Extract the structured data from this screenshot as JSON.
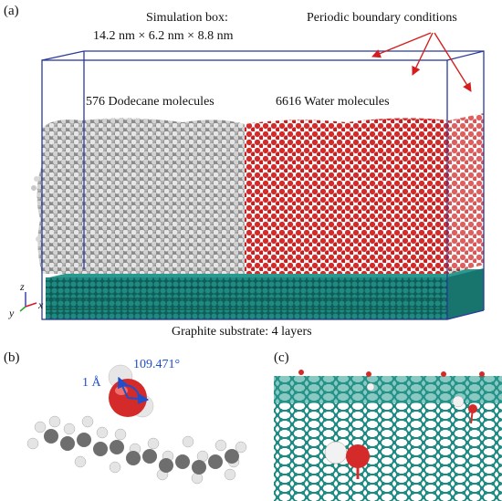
{
  "panels": {
    "a": {
      "label": "(a)",
      "box_title": "Simulation box:",
      "box_dims": "14.2 nm × 6.2 nm × 8.8 nm",
      "pbc": "Periodic boundary conditions",
      "dodecane": "576 Dodecane molecules",
      "water": "6616 Water molecules",
      "substrate": "Graphite substrate: 4 layers",
      "axes": {
        "z": "z",
        "x": "x",
        "y": "y"
      }
    },
    "b": {
      "label": "(b)",
      "bond_length": "1 Å",
      "angle": "109.471°"
    },
    "c": {
      "label": "(c)"
    }
  },
  "colors": {
    "box_edge": "#2b3a9a",
    "dodecane": "#cfcfcf",
    "water_oxygen": "#d42a2a",
    "water_hydrogen": "#f2f2f2",
    "graphite": "#1f8a82",
    "annotation_arrow": "#d41e1e",
    "angle_annotation": "#1f4fc9"
  }
}
